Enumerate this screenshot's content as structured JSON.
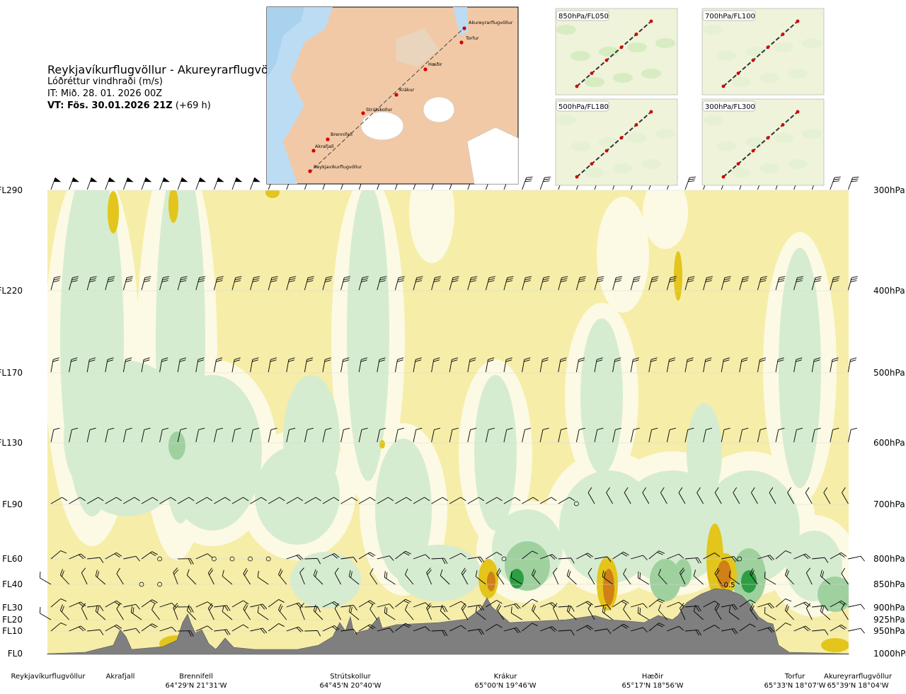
{
  "header": {
    "route": "Reykjavíkurflugvöllur - Akureyrarflugvöllur",
    "variable": "Lóðréttur vindhraði (m/s)",
    "issue": "IT: Mið. 28. 01. 2026 00Z",
    "valid_bold": "VT: Fös. 30.01.2026 21Z",
    "valid_rest": " (+69 h)"
  },
  "inset_map": {
    "points": [
      "Akureyrarflugvöllur",
      "Torfur",
      "Hæðir",
      "Krákur",
      "Strútskollur",
      "Brennifell",
      "Akrafjall",
      "Reykjavíkurflugvöllur"
    ]
  },
  "panels": [
    "850hPa/FL050",
    "700hPa/FL100",
    "500hPa/FL180",
    "300hPa/FL300"
  ],
  "chart_data": {
    "type": "heatmap",
    "title": "Reykjavíkurflugvöllur - Akureyrarflugvöllur",
    "variable": "Lóðréttur vindhraði (m/s)",
    "levels_left": [
      "FL290",
      "FL220",
      "FL170",
      "FL130",
      "FL90",
      "FL60",
      "FL40",
      "FL30",
      "FL20",
      "FL10",
      "FL0"
    ],
    "levels_right": [
      "300hPa",
      "400hPa",
      "500hPa",
      "600hPa",
      "700hPa",
      "800hPa",
      "850hPa",
      "900hPa",
      "925hPa",
      "950hPa",
      "1000hPa"
    ],
    "stations": [
      {
        "name": "Reykjavíkurflugvöllur",
        "coord": ""
      },
      {
        "name": "Akrafjall",
        "coord": ""
      },
      {
        "name": "Brennifell",
        "coord": "64°29'N 21°31'W"
      },
      {
        "name": "Strútskollur",
        "coord": "64°45'N 20°40'W"
      },
      {
        "name": "Krákur",
        "coord": "65°00'N 19°46'W"
      },
      {
        "name": "Hæðir",
        "coord": "65°17'N 18°56'W"
      },
      {
        "name": "Torfur",
        "coord": "65°33'N 18°07'W"
      },
      {
        "name": "Akureyrarflugvöllur",
        "coord": "65°39'N 18°04'W"
      }
    ],
    "annotations": [
      "-0.5"
    ],
    "colors": {
      "neutral": "#f6eda8",
      "weak_up": "#d6ecd0",
      "up": "#9fd19f",
      "strong_up": "#2e9e44",
      "down": "#e3c51b",
      "strong_down": "#d08017",
      "terrain": "#7f7f7f"
    }
  }
}
